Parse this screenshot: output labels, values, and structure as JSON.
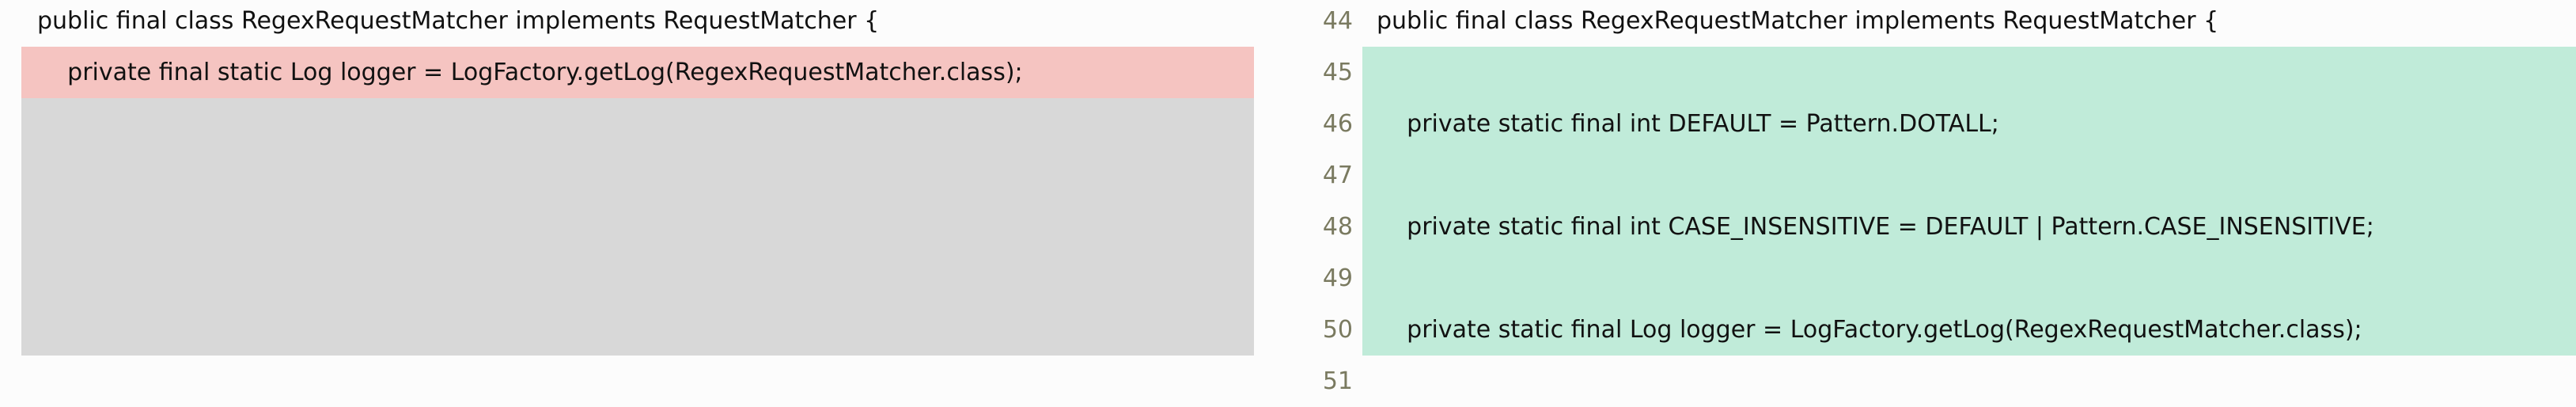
{
  "left": {
    "lines": [
      {
        "text": "public final class RegexRequestMatcher implements RequestMatcher {",
        "kind": "context"
      },
      {
        "text": "    private final static Log logger = LogFactory.getLog(RegexRequestMatcher.class);",
        "kind": "removed"
      }
    ]
  },
  "right": {
    "lines": [
      {
        "number": "44",
        "text": "public final class RegexRequestMatcher implements RequestMatcher {",
        "kind": "context"
      },
      {
        "number": "45",
        "text": "",
        "kind": "added"
      },
      {
        "number": "46",
        "text": "    private static final int DEFAULT = Pattern.DOTALL;",
        "kind": "added"
      },
      {
        "number": "47",
        "text": "",
        "kind": "added"
      },
      {
        "number": "48",
        "text": "    private static final int CASE_INSENSITIVE = DEFAULT | Pattern.CASE_INSENSITIVE;",
        "kind": "added"
      },
      {
        "number": "49",
        "text": "",
        "kind": "added"
      },
      {
        "number": "50",
        "text": "    private static final Log logger = LogFactory.getLog(RegexRequestMatcher.class);",
        "kind": "added"
      },
      {
        "number": "51",
        "text": "",
        "kind": "context"
      }
    ]
  }
}
